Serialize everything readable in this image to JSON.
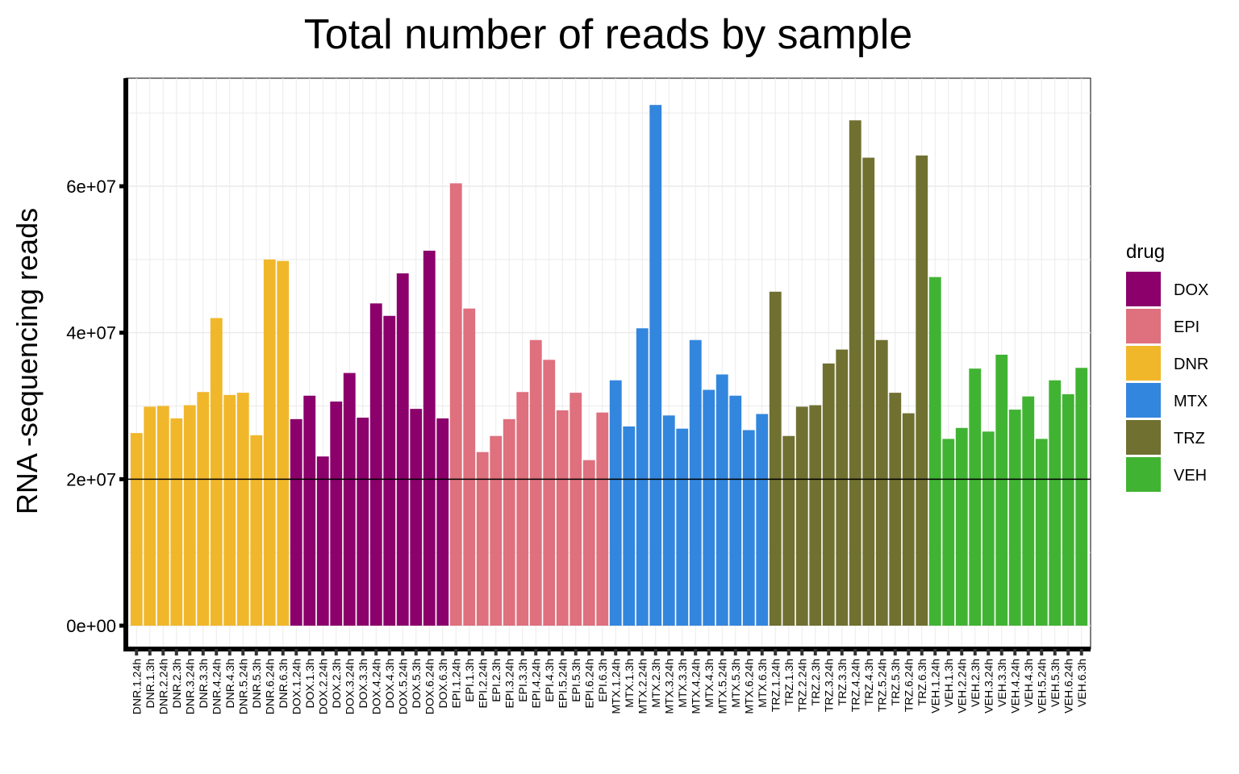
{
  "chart_data": {
    "type": "bar",
    "title": "Total number of reads by sample",
    "xlabel": "",
    "ylabel": "RNA -sequencing reads",
    "ylim": [
      0,
      72000000
    ],
    "yticks": [
      0,
      20000000,
      40000000,
      60000000
    ],
    "ytick_labels": [
      "0e+00",
      "2e+07",
      "4e+07",
      "6e+07"
    ],
    "reference_line": 20000000,
    "grid": true,
    "legend": {
      "title": "drug",
      "position": "right",
      "entries": [
        {
          "name": "DOX",
          "color": "#8B006B"
        },
        {
          "name": "EPI",
          "color": "#DF707E"
        },
        {
          "name": "DNR",
          "color": "#F1B72B"
        },
        {
          "name": "MTX",
          "color": "#3386DD"
        },
        {
          "name": "TRZ",
          "color": "#707031"
        },
        {
          "name": "VEH",
          "color": "#41B333"
        }
      ]
    },
    "categories": [
      "DNR.1.24h",
      "DNR.1.3h",
      "DNR.2.24h",
      "DNR.2.3h",
      "DNR.3.24h",
      "DNR.3.3h",
      "DNR.4.24h",
      "DNR.4.3h",
      "DNR.5.24h",
      "DNR.5.3h",
      "DNR.6.24h",
      "DNR.6.3h",
      "DOX.1.24h",
      "DOX.1.3h",
      "DOX.2.24h",
      "DOX.2.3h",
      "DOX.3.24h",
      "DOX.3.3h",
      "DOX.4.24h",
      "DOX.4.3h",
      "DOX.5.24h",
      "DOX.5.3h",
      "DOX.6.24h",
      "DOX.6.3h",
      "EPI.1.24h",
      "EPI.1.3h",
      "EPI.2.24h",
      "EPI.2.3h",
      "EPI.3.24h",
      "EPI.3.3h",
      "EPI.4.24h",
      "EPI.4.3h",
      "EPI.5.24h",
      "EPI.5.3h",
      "EPI.6.24h",
      "EPI.6.3h",
      "MTX.1.24h",
      "MTX.1.3h",
      "MTX.2.24h",
      "MTX.2.3h",
      "MTX.3.24h",
      "MTX.3.3h",
      "MTX.4.24h",
      "MTX.4.3h",
      "MTX.5.24h",
      "MTX.5.3h",
      "MTX.6.24h",
      "MTX.6.3h",
      "TRZ.1.24h",
      "TRZ.1.3h",
      "TRZ.2.24h",
      "TRZ.2.3h",
      "TRZ.3.24h",
      "TRZ.3.3h",
      "TRZ.4.24h",
      "TRZ.4.3h",
      "TRZ.5.24h",
      "TRZ.5.3h",
      "TRZ.6.24h",
      "TRZ.6.3h",
      "VEH.1.24h",
      "VEH.1.3h",
      "VEH.2.24h",
      "VEH.2.3h",
      "VEH.3.24h",
      "VEH.3.3h",
      "VEH.4.24h",
      "VEH.4.3h",
      "VEH.5.24h",
      "VEH.5.3h",
      "VEH.6.24h",
      "VEH.6.3h"
    ],
    "drug": [
      "DNR",
      "DNR",
      "DNR",
      "DNR",
      "DNR",
      "DNR",
      "DNR",
      "DNR",
      "DNR",
      "DNR",
      "DNR",
      "DNR",
      "DOX",
      "DOX",
      "DOX",
      "DOX",
      "DOX",
      "DOX",
      "DOX",
      "DOX",
      "DOX",
      "DOX",
      "DOX",
      "DOX",
      "EPI",
      "EPI",
      "EPI",
      "EPI",
      "EPI",
      "EPI",
      "EPI",
      "EPI",
      "EPI",
      "EPI",
      "EPI",
      "EPI",
      "MTX",
      "MTX",
      "MTX",
      "MTX",
      "MTX",
      "MTX",
      "MTX",
      "MTX",
      "MTX",
      "MTX",
      "MTX",
      "MTX",
      "TRZ",
      "TRZ",
      "TRZ",
      "TRZ",
      "TRZ",
      "TRZ",
      "TRZ",
      "TRZ",
      "TRZ",
      "TRZ",
      "TRZ",
      "TRZ",
      "VEH",
      "VEH",
      "VEH",
      "VEH",
      "VEH",
      "VEH",
      "VEH",
      "VEH",
      "VEH",
      "VEH",
      "VEH",
      "VEH"
    ],
    "values": [
      26300000,
      29900000,
      30000000,
      28300000,
      30100000,
      31900000,
      42000000,
      31500000,
      31800000,
      26000000,
      50000000,
      49800000,
      28200000,
      31400000,
      23100000,
      30600000,
      34500000,
      28400000,
      44000000,
      42300000,
      48100000,
      29600000,
      51200000,
      28300000,
      60400000,
      43300000,
      23700000,
      25900000,
      28200000,
      31900000,
      39000000,
      36300000,
      29400000,
      31800000,
      22600000,
      29100000,
      33500000,
      27200000,
      40600000,
      71100000,
      28700000,
      26900000,
      39000000,
      32200000,
      34300000,
      31400000,
      26700000,
      28900000,
      45600000,
      25900000,
      29900000,
      30100000,
      35800000,
      37700000,
      69000000,
      63900000,
      39000000,
      31800000,
      29000000,
      64200000,
      47600000,
      25500000,
      27000000,
      35100000,
      26500000,
      37000000,
      29500000,
      31300000,
      25500000,
      33500000,
      31600000,
      35200000
    ]
  }
}
